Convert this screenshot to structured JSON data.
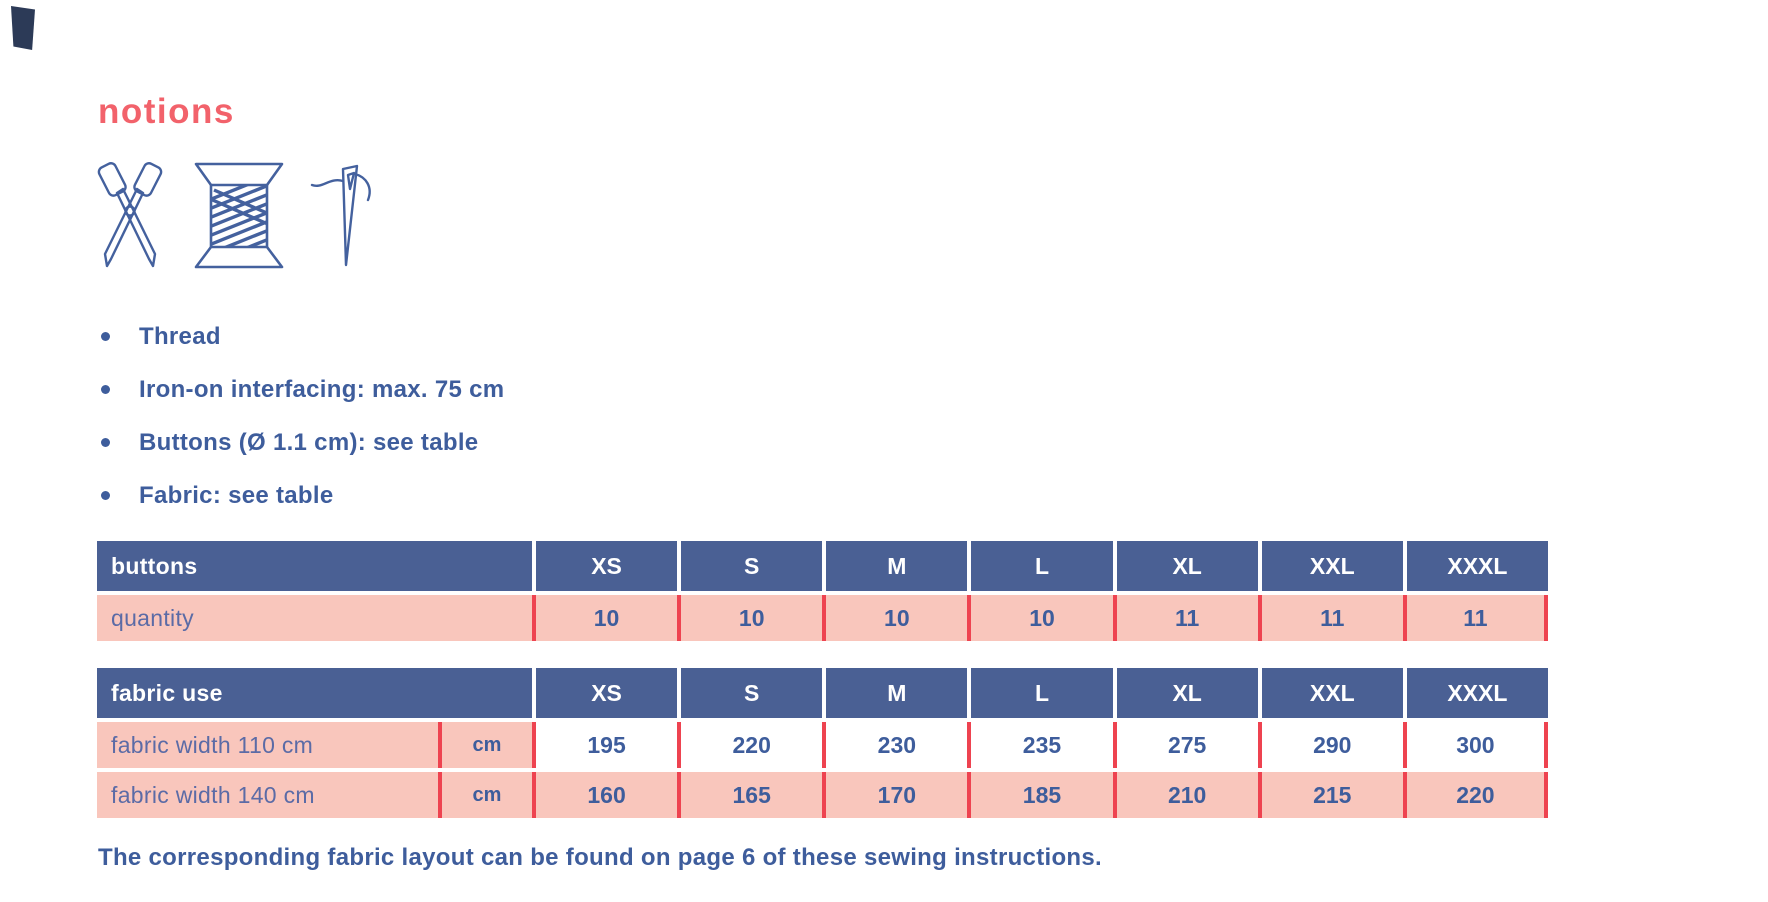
{
  "heading": "notions",
  "notions_list": {
    "items": [
      "Thread",
      "Iron-on interfacing: max. 75 cm",
      "Buttons (Ø 1.1 cm): see table",
      "Fabric: see table"
    ]
  },
  "icons": [
    "scissors-icon",
    "thread-spool-icon",
    "needle-icon"
  ],
  "tables": {
    "buttons": {
      "title": "buttons",
      "sizes": [
        "XS",
        "S",
        "M",
        "L",
        "XL",
        "XXL",
        "XXXL"
      ],
      "rows": [
        {
          "label": "quantity",
          "unit": null,
          "values": [
            "10",
            "10",
            "10",
            "10",
            "11",
            "11",
            "11"
          ],
          "values_highlighted": true
        }
      ]
    },
    "fabric": {
      "title": "fabric use",
      "sizes": [
        "XS",
        "S",
        "M",
        "L",
        "XL",
        "XXL",
        "XXXL"
      ],
      "rows": [
        {
          "label": "fabric width 110 cm",
          "unit": "cm",
          "values": [
            "195",
            "220",
            "230",
            "235",
            "275",
            "290",
            "300"
          ],
          "values_highlighted": false
        },
        {
          "label": "fabric width 140 cm",
          "unit": "cm",
          "values": [
            "160",
            "165",
            "170",
            "185",
            "210",
            "215",
            "220"
          ],
          "values_highlighted": true
        }
      ]
    }
  },
  "footer": "The corresponding fabric layout can be found on page 6 of these sewing instructions.",
  "colors": {
    "accent_coral": "#f2626b",
    "header_blue": "#4a6094",
    "row_pink": "#f9c6bc",
    "separator_red": "#ee4350",
    "text_blue": "#3e5d9c",
    "label_blue": "#5b6ba6",
    "icon_blue": "#44619e"
  }
}
